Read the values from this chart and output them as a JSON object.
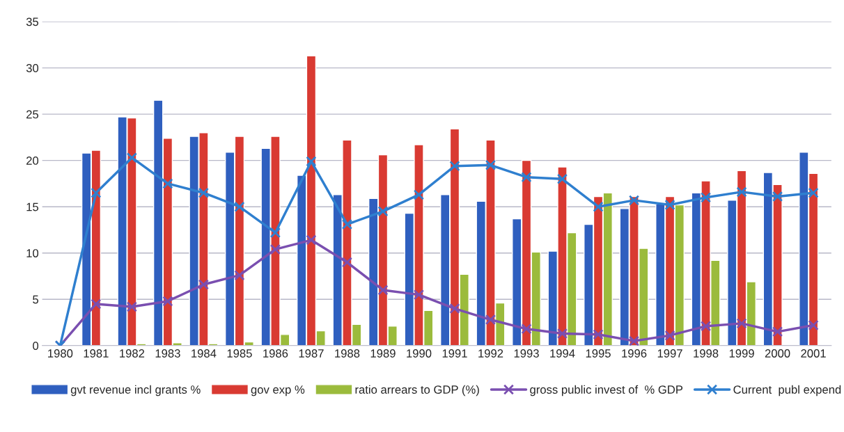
{
  "chart_data": {
    "type": "bar",
    "categories": [
      "1980",
      "1981",
      "1982",
      "1983",
      "1984",
      "1985",
      "1986",
      "1987",
      "1988",
      "1989",
      "1990",
      "1991",
      "1992",
      "1993",
      "1994",
      "1995",
      "1996",
      "1997",
      "1998",
      "1999",
      "2000",
      "2001"
    ],
    "series": [
      {
        "name": "gvt revenue incl grants %",
        "color": "#2f5fbf",
        "values": [
          null,
          20.8,
          24.7,
          26.5,
          22.6,
          20.9,
          21.3,
          18.4,
          16.3,
          15.9,
          14.3,
          16.3,
          15.6,
          13.7,
          10.2,
          13.1,
          14.8,
          15.3,
          16.5,
          15.7,
          18.7,
          20.9
        ]
      },
      {
        "name": "gov exp %",
        "color": "#d93a32",
        "values": [
          null,
          21.1,
          24.6,
          22.4,
          23.0,
          22.6,
          22.6,
          31.3,
          22.2,
          20.6,
          21.7,
          23.4,
          22.2,
          20.0,
          19.3,
          16.1,
          16.1,
          16.1,
          17.8,
          18.9,
          17.4,
          18.6
        ]
      },
      {
        "name": "ratio arrears to GDP (%)",
        "color": "#9bbb3c",
        "values": [
          null,
          null,
          0.2,
          0.3,
          0.2,
          0.4,
          1.2,
          1.6,
          2.3,
          2.1,
          3.8,
          7.7,
          4.6,
          10.1,
          12.2,
          16.5,
          10.5,
          15.2,
          9.2,
          6.9,
          null,
          null
        ]
      },
      {
        "name": "gross public invest of  % GDP",
        "type": "line",
        "color": "#7a4fb0",
        "marker": "cross",
        "values": [
          0,
          4.5,
          4.2,
          4.8,
          6.6,
          7.6,
          10.4,
          11.4,
          9.0,
          6.0,
          5.5,
          4.0,
          2.8,
          1.8,
          1.3,
          1.2,
          0.5,
          1.1,
          2.1,
          2.4,
          1.5,
          2.2
        ]
      },
      {
        "name": "Current  publ expend",
        "type": "line",
        "color": "#2f7fcf",
        "marker": "cross",
        "values": [
          0,
          16.5,
          20.3,
          17.5,
          16.5,
          15.0,
          12.2,
          19.9,
          13.1,
          14.5,
          16.3,
          19.4,
          19.5,
          18.2,
          18.0,
          15.0,
          15.7,
          15.2,
          16.0,
          16.6,
          16.1,
          16.5
        ]
      }
    ],
    "ylim": [
      0,
      35
    ],
    "yticks": [
      0,
      5,
      10,
      15,
      20,
      25,
      30,
      35
    ],
    "grid": "y",
    "legend": "bottom"
  }
}
